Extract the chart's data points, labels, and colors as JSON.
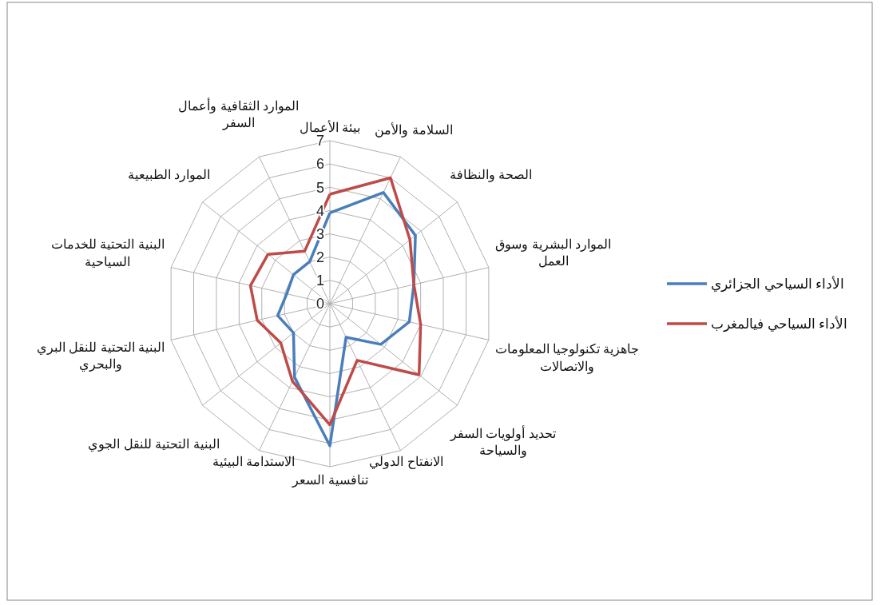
{
  "chart_data": {
    "type": "radar",
    "categories": [
      "بيئة الأعمال",
      "السلامة والأمن",
      "الصحة والنظافة",
      "الموارد البشرية وسوق العمل",
      "جاهزية تكنولوجيا المعلومات والاتصالات",
      "تحديد أولويات السفر والسياحة",
      "الانفتاح الدولي",
      "تنافسية السعر",
      "الاستدامة البيئية",
      "البنية التحتية للنقل الجوي",
      "البنية التحتية للنقل البري والبحري",
      "البنية التحتية للخدمات السياحية",
      "الموارد الطبيعية",
      "الموارد الثقافية وأعمال السفر"
    ],
    "series": [
      {
        "name": "الأداء السياحي الجزائري",
        "color": "#4a7ebb",
        "values": [
          3.9,
          5.3,
          4.7,
          3.7,
          3.5,
          2.8,
          1.6,
          6.1,
          3.5,
          2.0,
          2.3,
          1.9,
          2.0,
          2.0
        ]
      },
      {
        "name": "الأداء السياحي فيالمغرب",
        "color": "#be4b48",
        "values": [
          4.7,
          6.0,
          4.4,
          3.7,
          4.0,
          4.9,
          2.7,
          5.2,
          3.7,
          2.7,
          3.2,
          3.5,
          3.4,
          2.5
        ]
      }
    ],
    "ylim": [
      0,
      7
    ],
    "yticks": [
      0,
      1,
      2,
      3,
      4,
      5,
      6,
      7
    ],
    "grid": true,
    "legend": "right",
    "marker": "none",
    "line_style": "solid"
  }
}
